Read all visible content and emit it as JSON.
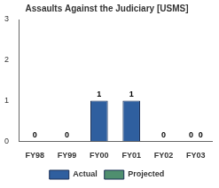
{
  "chart_data": {
    "type": "bar",
    "title": "Assaults Against the Judiciary [USMS]",
    "categories": [
      "FY98",
      "FY99",
      "FY00",
      "FY01",
      "FY02",
      "FY03"
    ],
    "series": [
      {
        "name": "Actual",
        "color": "#2f5f9f",
        "values": [
          0,
          0,
          1,
          1,
          0,
          0
        ]
      },
      {
        "name": "Projected",
        "color": "#4f8f6f",
        "values": [
          null,
          null,
          null,
          null,
          null,
          0
        ]
      }
    ],
    "ylim": [
      0,
      3
    ],
    "yticks": [
      0,
      1,
      2,
      3
    ],
    "grid": false,
    "legend": "bottom",
    "data_labels": true
  }
}
